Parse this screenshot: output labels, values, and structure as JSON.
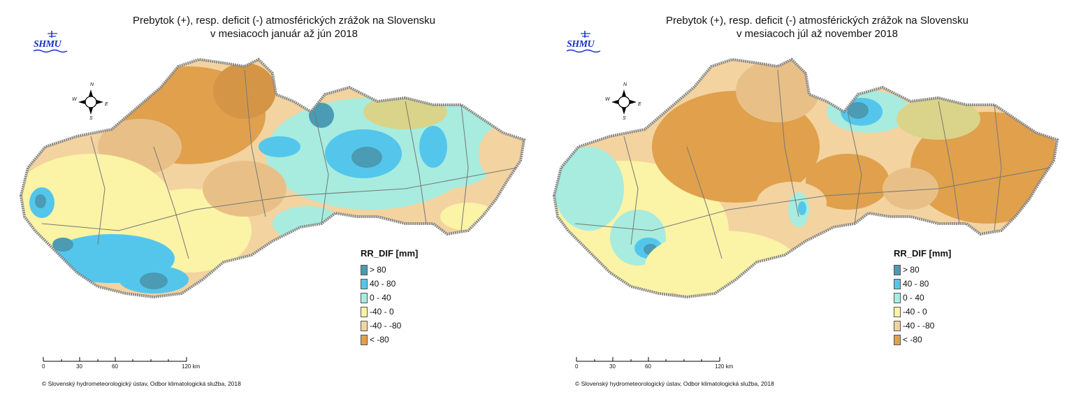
{
  "logo_text": "SHMU",
  "compass": {
    "n": "N",
    "s": "S",
    "e": "E",
    "w": "W"
  },
  "panels": [
    {
      "title_line1": "Prebytok (+), resp. deficit (-) atmosférických zrážok na Slovensku",
      "title_line2": "v mesiacoch január až jún 2018"
    },
    {
      "title_line1": "Prebytok (+), resp. deficit (-) atmosférických zrážok na Slovensku",
      "title_line2": "v mesiacoch júl až november 2018"
    }
  ],
  "legend": {
    "title": "RR_DIF [mm]",
    "items": [
      {
        "label": "> 80",
        "color": "#4a9bb3"
      },
      {
        "label": "40 - 80",
        "color": "#54c6ec"
      },
      {
        "label": "0 - 40",
        "color": "#a7ecdf"
      },
      {
        "label": "-40 - 0",
        "color": "#fbf3a6"
      },
      {
        "label": "-40 - -80",
        "color": "#f3d3a0"
      },
      {
        "label": "< -80",
        "color": "#e0a04c"
      }
    ]
  },
  "scale": {
    "l0": "0",
    "l1": "30",
    "l2": "60",
    "l3": "120 km"
  },
  "credit": "© Slovenský hydrometeorologický ústav, Odbor klimatologická služba, 2018"
}
